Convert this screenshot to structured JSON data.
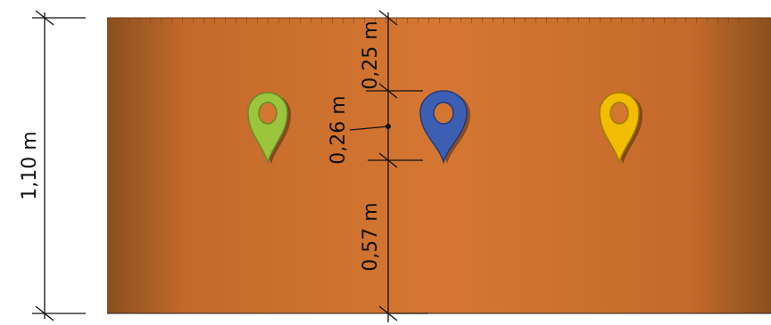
{
  "diagram": {
    "overall_height_label": "1,10 m",
    "segments": [
      {
        "label": "0,25 m"
      },
      {
        "label": "0,26 m"
      },
      {
        "label": "0,57 m"
      }
    ],
    "markers": [
      {
        "name": "green-marker",
        "color": "#9BC53D"
      },
      {
        "name": "blue-marker",
        "color": "#3D5FB3"
      },
      {
        "name": "yellow-marker",
        "color": "#F2BD00"
      }
    ],
    "panel": {
      "base_color": "#D3762F",
      "edge_color": "#8A4F1E"
    }
  }
}
